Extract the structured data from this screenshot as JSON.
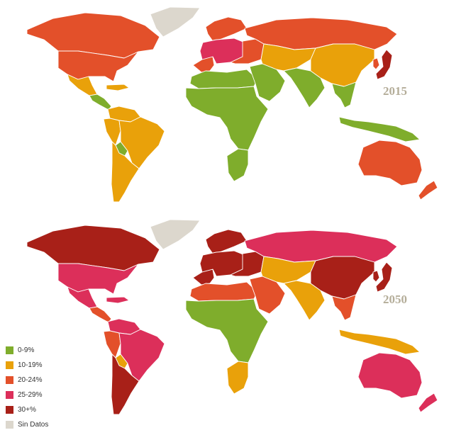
{
  "colors": {
    "c0_9": "#7fad2c",
    "c10_19": "#e9a10a",
    "c20_24": "#e3502a",
    "c25_29": "#dc2f5a",
    "c30plus": "#a82018",
    "sin_datos": "#dcd7cd"
  },
  "maps": [
    {
      "year": "2015",
      "regions": {
        "greenland": "sin_datos",
        "canada": "c20_24",
        "usa": "c20_24",
        "mexico": "c10_19",
        "central_america": "c0_9",
        "caribbean": "c10_19",
        "south_america_north": "c10_19",
        "south_america_andes": "c10_19",
        "brazil": "c10_19",
        "bolivia": "c0_9",
        "southern_cone": "c10_19",
        "western_europe": "c20_24",
        "central_europe": "c25_29",
        "scandinavia": "c20_24",
        "russia": "c20_24",
        "eastern_europe": "c20_24",
        "north_africa": "c0_9",
        "middle_east": "c0_9",
        "sub_saharan_africa": "c0_9",
        "south_africa": "c0_9",
        "central_asia": "c10_19",
        "south_asia": "c0_9",
        "china": "c10_19",
        "korea": "c20_24",
        "japan": "c30plus",
        "southeast_asia": "c0_9",
        "indonesia": "c0_9",
        "australia": "c20_24",
        "new_zealand": "c20_24"
      }
    },
    {
      "year": "2050",
      "regions": {
        "greenland": "sin_datos",
        "canada": "c30plus",
        "usa": "c25_29",
        "mexico": "c25_29",
        "central_america": "c20_24",
        "caribbean": "c25_29",
        "south_america_north": "c25_29",
        "south_america_andes": "c20_24",
        "brazil": "c25_29",
        "bolivia": "c10_19",
        "southern_cone": "c30plus",
        "western_europe": "c30plus",
        "central_europe": "c30plus",
        "scandinavia": "c30plus",
        "russia": "c25_29",
        "eastern_europe": "c30plus",
        "north_africa": "c20_24",
        "middle_east": "c20_24",
        "sub_saharan_africa": "c0_9",
        "south_africa": "c10_19",
        "central_asia": "c10_19",
        "south_asia": "c10_19",
        "china": "c30plus",
        "korea": "c30plus",
        "japan": "c30plus",
        "southeast_asia": "c20_24",
        "indonesia": "c10_19",
        "australia": "c25_29",
        "new_zealand": "c25_29"
      }
    }
  ],
  "legend": [
    {
      "label": "0-9%",
      "color_key": "c0_9"
    },
    {
      "label": "10-19%",
      "color_key": "c10_19"
    },
    {
      "label": "20-24%",
      "color_key": "c20_24"
    },
    {
      "label": "25-29%",
      "color_key": "c25_29"
    },
    {
      "label": "30+%",
      "color_key": "c30plus"
    },
    {
      "label": "Sin Datos",
      "color_key": "sin_datos"
    }
  ]
}
